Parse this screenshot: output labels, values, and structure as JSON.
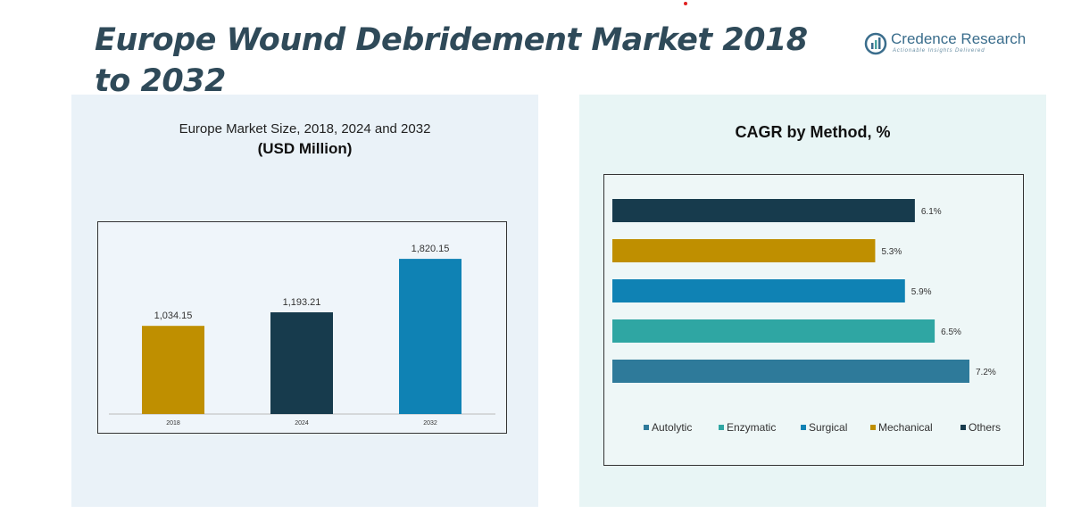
{
  "header": {
    "title": "Europe Wound Debridement Market 2018 to 2032",
    "brand_name": "Credence Research",
    "brand_tagline": "Actionable Insights Delivered"
  },
  "left_panel": {
    "subtitle": "Europe Market Size, 2018, 2024 and 2032",
    "unit": "(USD Million)"
  },
  "right_panel": {
    "title": "CAGR by Method, %"
  },
  "colors": {
    "accent_red": "#e02020",
    "title": "#2f4a59",
    "gold": "#bf8f00",
    "navy": "#173b4d",
    "blue": "#0f82b4",
    "teal": "#2fa6a3",
    "steel": "#2e7a9a"
  },
  "chart_data": [
    {
      "type": "bar",
      "title": "Europe Market Size, 2018, 2024 and 2032",
      "subtitle": "(USD Million)",
      "categories": [
        "2018",
        "2024",
        "2032"
      ],
      "values": [
        1034.15,
        1193.21,
        1820.15
      ],
      "labels": [
        "1,034.15",
        "1,193.21",
        "1,820.15"
      ],
      "colors": [
        "#bf8f00",
        "#173b4d",
        "#0f82b4"
      ],
      "ylim": [
        0,
        2000
      ],
      "grid": false
    },
    {
      "type": "bar",
      "orientation": "horizontal",
      "title": "CAGR by Method, %",
      "categories": [
        "Others",
        "Mechanical",
        "Surgical",
        "Enzymatic",
        "Autolytic"
      ],
      "values": [
        6.1,
        5.3,
        5.9,
        6.5,
        7.2
      ],
      "labels": [
        "6.1%",
        "5.3%",
        "5.9%",
        "6.5%",
        "7.2%"
      ],
      "colors": [
        "#173b4d",
        "#bf8f00",
        "#0f82b4",
        "#2fa6a3",
        "#2e7a9a"
      ],
      "xlim": [
        0,
        7.2
      ],
      "grid": false,
      "legend_position": "bottom",
      "legend": [
        {
          "name": "Autolytic",
          "color": "#2e7a9a"
        },
        {
          "name": "Enzymatic",
          "color": "#2fa6a3"
        },
        {
          "name": "Surgical",
          "color": "#0f82b4"
        },
        {
          "name": "Mechanical",
          "color": "#bf8f00"
        },
        {
          "name": "Others",
          "color": "#173b4d"
        }
      ]
    }
  ]
}
